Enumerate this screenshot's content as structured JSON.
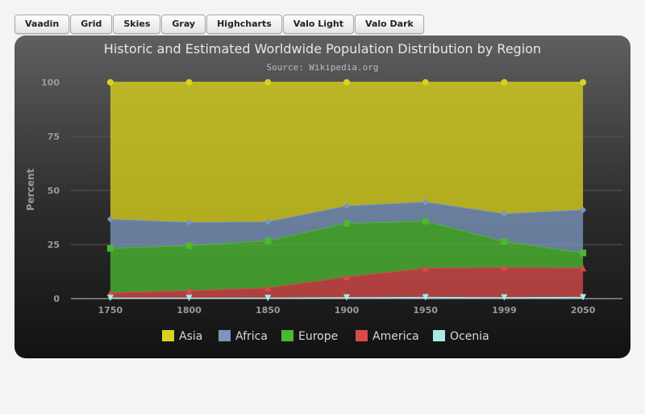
{
  "toolbar": {
    "buttons": [
      "Vaadin",
      "Grid",
      "Skies",
      "Gray",
      "Highcharts",
      "Valo Light",
      "Valo Dark"
    ]
  },
  "chart_data": {
    "type": "area",
    "stacked": "percent",
    "title": "Historic and Estimated Worldwide Population Distribution by Region",
    "subtitle": "Source: Wikipedia.org",
    "ylabel": "Percent",
    "xlabel": "",
    "categories": [
      "1750",
      "1800",
      "1850",
      "1900",
      "1950",
      "1999",
      "2050"
    ],
    "ylim": [
      0,
      100
    ],
    "yticks": [
      "0",
      "25",
      "50",
      "75",
      "100"
    ],
    "grid": true,
    "legend_position": "bottom-center",
    "series": [
      {
        "name": "Asia",
        "color": "#d8d21c",
        "marker": "circle",
        "values": [
          63.3,
          64.7,
          64.4,
          57.2,
          55.3,
          60.6,
          59.0
        ]
      },
      {
        "name": "Africa",
        "color": "#7b95bd",
        "marker": "diamond",
        "values": [
          13.5,
          10.8,
          8.8,
          8.0,
          8.9,
          12.8,
          19.9
        ]
      },
      {
        "name": "Europe",
        "color": "#4cb832",
        "marker": "square",
        "values": [
          20.6,
          20.8,
          21.8,
          24.8,
          21.7,
          12.0,
          7.0
        ]
      },
      {
        "name": "America",
        "color": "#d74a4a",
        "marker": "triangle",
        "values": [
          2.3,
          3.3,
          4.6,
          9.5,
          13.4,
          13.8,
          13.5
        ]
      },
      {
        "name": "Ocenia",
        "color": "#a8eaea",
        "marker": "triangle-down",
        "values": [
          0.3,
          0.3,
          0.3,
          0.5,
          0.6,
          0.5,
          0.6
        ]
      }
    ]
  }
}
